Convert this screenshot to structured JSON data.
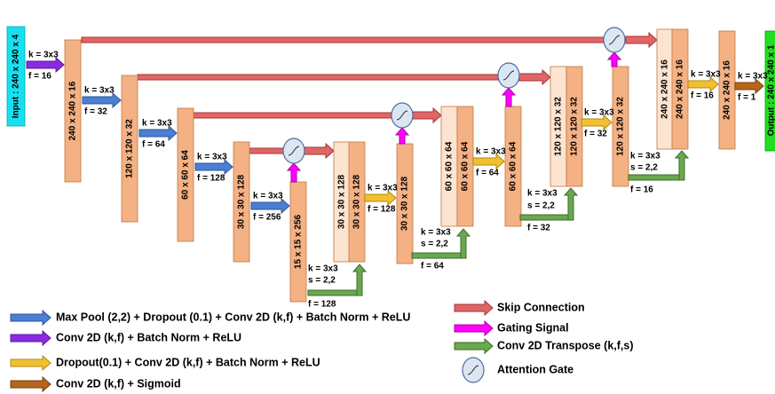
{
  "input": "Input : 240 x 240 x 4",
  "output": "Output : 240 x 240 x 1",
  "blocks": [
    "240 x 240 x 16",
    "120 x 120 x 32",
    "60 x 60 x 64",
    "30 x 30 x 128",
    "15 x 15 x 256",
    "30 x 30 x 128",
    "30 x 30 x 128",
    "30 x 30 x 128",
    "60 x 60 x 64",
    "60 x 60 x 64",
    "60 x 60 x 64",
    "120 x 120 x 32",
    "120 x 120 x 32",
    "120 x 120 x 32",
    "240 x 240 x 16",
    "240 x 240 x 16",
    "240 x 240 x 16"
  ],
  "convs": [
    {
      "k": "k = 3x3",
      "f": "f = 16"
    },
    {
      "k": "k = 3x3",
      "f": "f = 32"
    },
    {
      "k": "k = 3x3",
      "f": "f = 64"
    },
    {
      "k": "k = 3x3",
      "f": "f = 128"
    },
    {
      "k": "k = 3x3",
      "f": "f = 256"
    },
    {
      "k": "k = 3x3",
      "f": "f = 128"
    },
    {
      "k": "k = 3x3",
      "f": "f = 64"
    },
    {
      "k": "k = 3x3",
      "f": "f = 32"
    },
    {
      "k": "k = 3x3",
      "f": "f = 16"
    },
    {
      "k": "k = 3x3",
      "f": "f = 1"
    }
  ],
  "transposes": [
    {
      "k": "k = 3x3",
      "s": "s = 2,2",
      "f": "f = 128"
    },
    {
      "k": "k = 3x3",
      "s": "s = 2,2",
      "f": "f = 64"
    },
    {
      "k": "k = 3x3",
      "s": "s = 2,2",
      "f": "f = 32"
    },
    {
      "k": "k = 3x3",
      "s": "s = 2,2",
      "f": "f = 16"
    }
  ],
  "legend_left": [
    "Max Pool (2,2) + Dropout (0.1) + Conv 2D (k,f) + Batch Norm + ReLU",
    "Conv 2D (k,f) + Batch Norm + ReLU",
    "Dropout(0.1) + Conv 2D (k,f) + Batch Norm + ReLU",
    "Conv 2D (k,f) + Sigmoid"
  ],
  "legend_right": [
    "Skip Connection",
    "Gating Signal",
    "Conv 2D Transpose (k,f,s)",
    "Attention Gate"
  ]
}
